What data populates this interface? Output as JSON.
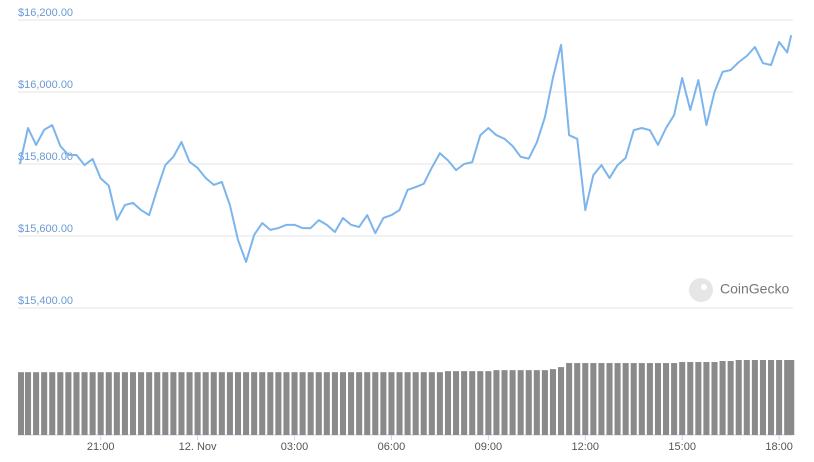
{
  "chart_data": {
    "type": "line",
    "watermark": "CoinGecko",
    "x": [
      -5.5,
      -5.25,
      -5,
      -4.75,
      -4.5,
      -4.25,
      -4,
      -3.75,
      -3.5,
      -3.25,
      -3,
      -2.75,
      -2.5,
      -2.25,
      -2,
      -1.75,
      -1.5,
      -1.25,
      -1,
      -0.75,
      -0.5,
      -0.25,
      0,
      0.25,
      0.5,
      0.75,
      1,
      1.25,
      1.5,
      1.75,
      2,
      2.25,
      2.5,
      2.75,
      3,
      3.25,
      3.5,
      3.75,
      4,
      4.25,
      4.5,
      4.75,
      5,
      5.25,
      5.5,
      5.75,
      6,
      6.25,
      6.5,
      6.75,
      7,
      7.25,
      7.5,
      7.75,
      8,
      8.25,
      8.5,
      8.75,
      9,
      9.25,
      9.5,
      9.75,
      10,
      10.25,
      10.5,
      10.75,
      11,
      11.25,
      11.5,
      11.75,
      12,
      12.25,
      12.5,
      12.75,
      13,
      13.25,
      13.5,
      13.75,
      14,
      14.25,
      14.5,
      14.75,
      15,
      15.25,
      15.5,
      15.75,
      16,
      16.25,
      16.5,
      16.75,
      17,
      17.25,
      17.5,
      17.75,
      18,
      18.25,
      18.375
    ],
    "series": [
      {
        "color": "#7cb5ec",
        "values": [
          15800,
          15900,
          15853,
          15895,
          15908,
          15850,
          15825,
          15825,
          15797,
          15814,
          15760,
          15740,
          15645,
          15686,
          15692,
          15672,
          15658,
          15730,
          15797,
          15820,
          15861,
          15806,
          15789,
          15761,
          15742,
          15750,
          15686,
          15589,
          15528,
          15603,
          15636,
          15617,
          15622,
          15631,
          15631,
          15622,
          15622,
          15644,
          15631,
          15611,
          15650,
          15631,
          15625,
          15658,
          15608,
          15650,
          15658,
          15672,
          15728,
          15736,
          15745,
          15790,
          15830,
          15810,
          15783,
          15800,
          15805,
          15880,
          15900,
          15880,
          15870,
          15850,
          15820,
          15815,
          15860,
          15930,
          16040,
          16131,
          15880,
          15870,
          15672,
          15769,
          15797,
          15761,
          15797,
          15817,
          15894,
          15900,
          15894,
          15853,
          15900,
          15936,
          16039,
          15950,
          16033,
          15908,
          16000,
          16056,
          16061,
          16083,
          16100,
          16125,
          16080,
          16075,
          16139,
          16110,
          16158
        ]
      },
      {
        "color": "#8a8a8a",
        "axis": "y2",
        "values": [
          62,
          62,
          62,
          62,
          62,
          62,
          62,
          62,
          62,
          62,
          62,
          62,
          62,
          62,
          62,
          62,
          62,
          62,
          62,
          62,
          62,
          62,
          62,
          62,
          62,
          62,
          62,
          62,
          62,
          62,
          62,
          62,
          62,
          62,
          62,
          62,
          62,
          62,
          62,
          62,
          62,
          62,
          62,
          62,
          62,
          62,
          62,
          62,
          62,
          62,
          62,
          62,
          62,
          63,
          63,
          63,
          63,
          63,
          63,
          64,
          64,
          64,
          64,
          64,
          64,
          64,
          65,
          67,
          71,
          71,
          71,
          71,
          71,
          71,
          71,
          71,
          71,
          71,
          71,
          71,
          71,
          71,
          72,
          72,
          72,
          72,
          72,
          73,
          73,
          74,
          74,
          74,
          74,
          74,
          74,
          74,
          74
        ]
      }
    ],
    "xlim": [
      -5.56,
      18.43
    ],
    "xticks": [
      {
        "value": -3,
        "label": "21:00"
      },
      {
        "value": 0,
        "label": "12. Nov"
      },
      {
        "value": 3,
        "label": "03:00"
      },
      {
        "value": 6,
        "label": "06:00"
      },
      {
        "value": 9,
        "label": "09:00"
      },
      {
        "value": 12,
        "label": "12:00"
      },
      {
        "value": 15,
        "label": "15:00"
      },
      {
        "value": 18,
        "label": "18:00"
      }
    ],
    "ylim": [
      15400,
      16200
    ],
    "yticks": [
      {
        "value": 15400,
        "label": "$15,400.00"
      },
      {
        "value": 15600,
        "label": "$15,600.00"
      },
      {
        "value": 15800,
        "label": "$15,800.00"
      },
      {
        "value": 16000,
        "label": "$16,000.00"
      },
      {
        "value": 16200,
        "label": "$16,200.00"
      }
    ],
    "y2lim": [
      0,
      75
    ],
    "grid": true
  }
}
